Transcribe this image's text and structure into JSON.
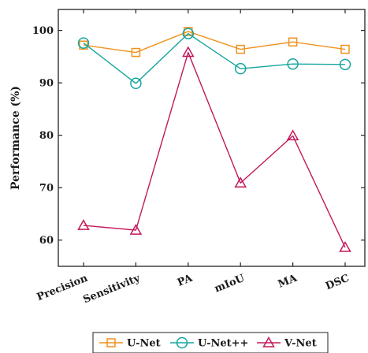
{
  "chart_data": {
    "type": "line",
    "title": "",
    "xlabel": "",
    "ylabel": "Performance (%)",
    "categories": [
      "Precision",
      "Sensitivity",
      "PA",
      "mIoU",
      "MA",
      "DSC"
    ],
    "ylim": [
      55,
      104
    ],
    "yticks": [
      60,
      70,
      80,
      90,
      100
    ],
    "grid": false,
    "legend_position": "bottom",
    "series": [
      {
        "name": "U-Net",
        "marker": "square",
        "color": "#f0921e",
        "values": [
          97.2,
          95.8,
          99.8,
          96.4,
          97.8,
          96.4
        ]
      },
      {
        "name": "U-Net++",
        "marker": "circle",
        "color": "#16a6a0",
        "values": [
          97.6,
          89.9,
          99.4,
          92.7,
          93.6,
          93.5
        ]
      },
      {
        "name": "V-Net",
        "marker": "triangle",
        "color": "#c2185b",
        "values": [
          62.8,
          61.9,
          95.8,
          70.9,
          79.9,
          58.6
        ]
      }
    ]
  }
}
